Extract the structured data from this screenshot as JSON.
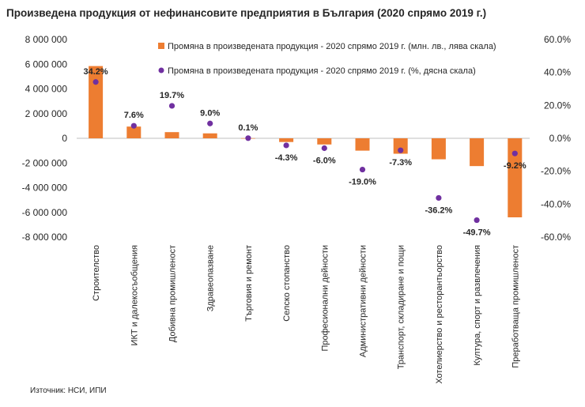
{
  "chart_data": {
    "type": "bar",
    "title": "Произведена продукция от нефинансовите предприятия в България (2020 спрямо 2019 г.)",
    "source": "Източник: НСИ, ИПИ",
    "categories": [
      "Строителство",
      "ИКТ и далекосъобщения",
      "Добивна промишленост",
      "Здравеопазване",
      "Търговия и ремонт",
      "Селско стопанство",
      "Професионални дейности",
      "Административни дейности",
      "Транспорт, складиране и пощи",
      "Хотелиерство и ресторантьорство",
      "Култура, спорт и развлечения",
      "Преработваща промишленост"
    ],
    "series": [
      {
        "name": "Промяна в произведената продукция - 2020 спрямо 2019 г. (млн. лв., лява скала)",
        "type": "bar",
        "axis": "left",
        "color": "#ED7D31",
        "values": [
          5850000,
          950000,
          500000,
          400000,
          10000,
          -300000,
          -500000,
          -1000000,
          -1250000,
          -1700000,
          -2250000,
          -6400000
        ]
      },
      {
        "name": "Промяна в произведената продукция - 2020 спрямо 2019 г. (%, дясна скала)",
        "type": "scatter",
        "axis": "right",
        "color": "#7030A0",
        "values": [
          34.2,
          7.6,
          19.7,
          9.0,
          0.1,
          -4.3,
          -6.0,
          -19.0,
          -7.3,
          -36.2,
          -49.7,
          -9.2
        ],
        "labels": [
          "34.2%",
          "7.6%",
          "19.7%",
          "9.0%",
          "0.1%",
          "-4.3%",
          "-6.0%",
          "-19.0%",
          "-7.3%",
          "-36.2%",
          "-49.7%",
          "-9.2%"
        ]
      }
    ],
    "y_left": {
      "ylim": [
        -8000000,
        8000000
      ],
      "ticks": [
        8000000,
        6000000,
        4000000,
        2000000,
        0,
        -2000000,
        -4000000,
        -6000000,
        -8000000
      ],
      "tick_labels": [
        "8 000 000",
        "6 000 000",
        "4 000 000",
        "2 000 000",
        "0",
        "-2 000 000",
        "-4 000 000",
        "-6 000 000",
        "-8 000 000"
      ]
    },
    "y_right": {
      "ylim": [
        -60,
        60
      ],
      "ticks": [
        60,
        40,
        20,
        0,
        -20,
        -40,
        -60
      ],
      "tick_labels": [
        "60.0%",
        "40.0%",
        "20.0%",
        "0.0%",
        "-20.0%",
        "-40.0%",
        "-60.0%"
      ]
    },
    "legend_position": "top-right",
    "grid": false
  }
}
